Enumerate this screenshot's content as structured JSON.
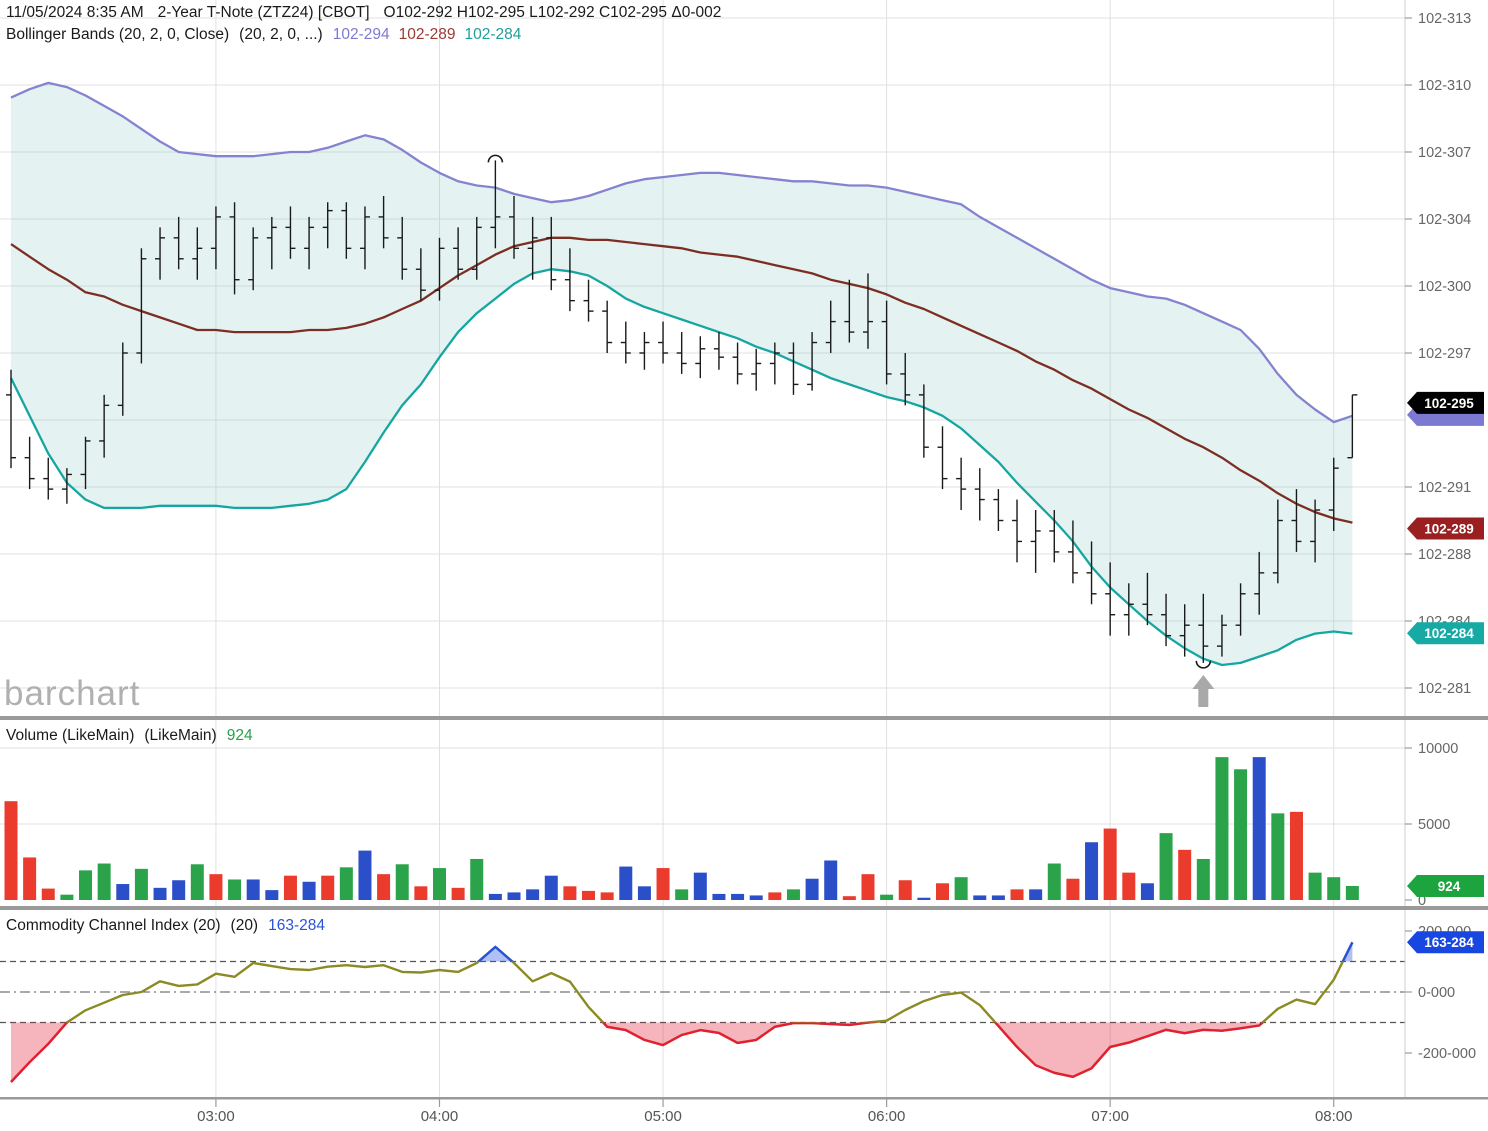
{
  "header": {
    "datetime": "11/05/2024 8:35 AM",
    "symbol": "2-Year T-Note (ZTZ24) [CBOT]",
    "ohlc": "O102-292 H102-295 L102-292 C102-295 Δ0-002",
    "bollinger_label": "Bollinger Bands (20, 2, 0, Close)",
    "bollinger_params": "(20, 2, 0, ...)",
    "bollinger_upper": "102-294",
    "bollinger_middle": "102-289",
    "bollinger_lower": "102-284"
  },
  "volume_header": {
    "label": "Volume (LikeMain)",
    "params": "(LikeMain)",
    "value": "924"
  },
  "cci_header": {
    "label": "Commodity Channel Index (20)",
    "params": "(20)",
    "value": "163-284"
  },
  "watermark": "barchart",
  "colors": {
    "band_upper": "#8583cf",
    "band_middle": "#7d2e23",
    "band_lower": "#16a6a1",
    "band_fill": "rgba(130,200,196,0.22)",
    "ohlc_bar": "#1a1a1a",
    "vol_up": "#2aa34a",
    "vol_down": "#ea3b2d",
    "vol_neutral": "#2b4fc9",
    "cci_line": "#8b8b25",
    "cci_below": "#e51f33",
    "cci_above": "#2553d9",
    "cci_fill_below": "rgba(229,31,51,0.33)",
    "cci_fill_above": "rgba(59,98,227,0.4)",
    "badge_last": "#000000",
    "badge_last_accent": "#7b79d2",
    "badge_middle": "#991f20",
    "badge_lower": "#17a9a4",
    "badge_volume": "#1ca53e",
    "badge_cci": "#1746e0",
    "arrow": "#a9a9a9"
  },
  "chart_data": {
    "type": "ohlc-multi-panel",
    "interval_minutes": 5,
    "price_unit": "32nds over 102, tenths notation (29.5 = 102-295)",
    "x_ticks": [
      {
        "label": "03:00",
        "bar_index": 11
      },
      {
        "label": "04:00",
        "bar_index": 23
      },
      {
        "label": "05:00",
        "bar_index": 35
      },
      {
        "label": "06:00",
        "bar_index": 47
      },
      {
        "label": "07:00",
        "bar_index": 59
      },
      {
        "label": "08:00",
        "bar_index": 71
      }
    ],
    "panels": [
      {
        "name": "price",
        "type": "ohlc+bollinger",
        "y_ticks": [
          {
            "label": "102-313",
            "v": 31.3
          },
          {
            "label": "102-310",
            "v": 30.98
          },
          {
            "label": "102-307",
            "v": 30.66
          },
          {
            "label": "102-304",
            "v": 30.34
          },
          {
            "label": "102-300",
            "v": 30.02
          },
          {
            "label": "102-297",
            "v": 29.7
          },
          {
            "label": "102-291",
            "v": 29.06
          },
          {
            "label": "102-288",
            "v": 28.74
          },
          {
            "label": "102-284",
            "v": 28.42
          },
          {
            "label": "102-281",
            "v": 28.1
          }
        ],
        "extra_gridlines": [
          29.38
        ],
        "badges": [
          {
            "label": "102-295",
            "v": 29.5,
            "bg": "#000000",
            "accent": "#7b79d2"
          },
          {
            "label": "102-289",
            "v": 28.9,
            "bg": "#991f20"
          },
          {
            "label": "102-284",
            "v": 28.4,
            "bg": "#17a9a4"
          }
        ],
        "markers": [
          {
            "type": "arc-over",
            "bar": 26
          },
          {
            "type": "arc-under",
            "bar": 64
          },
          {
            "type": "arrow-up",
            "bar": 64
          }
        ],
        "bars": [
          [
            29.5,
            29.62,
            29.15,
            29.2
          ],
          [
            29.2,
            29.3,
            29.05,
            29.1
          ],
          [
            29.1,
            29.2,
            29.0,
            29.05
          ],
          [
            29.05,
            29.15,
            28.98,
            29.12
          ],
          [
            29.12,
            29.3,
            29.05,
            29.28
          ],
          [
            29.28,
            29.5,
            29.2,
            29.45
          ],
          [
            29.45,
            29.75,
            29.4,
            29.7
          ],
          [
            29.7,
            30.2,
            29.65,
            30.15
          ],
          [
            30.15,
            30.3,
            30.05,
            30.25
          ],
          [
            30.25,
            30.35,
            30.1,
            30.15
          ],
          [
            30.15,
            30.3,
            30.05,
            30.2
          ],
          [
            30.2,
            30.4,
            30.1,
            30.35
          ],
          [
            30.35,
            30.42,
            29.98,
            30.05
          ],
          [
            30.05,
            30.3,
            30.0,
            30.25
          ],
          [
            30.25,
            30.35,
            30.1,
            30.3
          ],
          [
            30.3,
            30.4,
            30.15,
            30.2
          ],
          [
            30.2,
            30.35,
            30.1,
            30.3
          ],
          [
            30.3,
            30.42,
            30.2,
            30.38
          ],
          [
            30.38,
            30.42,
            30.15,
            30.2
          ],
          [
            30.2,
            30.4,
            30.1,
            30.35
          ],
          [
            30.35,
            30.45,
            30.2,
            30.25
          ],
          [
            30.25,
            30.35,
            30.05,
            30.1
          ],
          [
            30.1,
            30.2,
            29.95,
            30.0
          ],
          [
            30.0,
            30.25,
            29.95,
            30.2
          ],
          [
            30.2,
            30.3,
            30.05,
            30.1
          ],
          [
            30.1,
            30.35,
            30.05,
            30.3
          ],
          [
            30.3,
            30.62,
            30.2,
            30.35
          ],
          [
            30.35,
            30.45,
            30.15,
            30.2
          ],
          [
            30.2,
            30.35,
            30.05,
            30.25
          ],
          [
            30.25,
            30.35,
            30.0,
            30.05
          ],
          [
            30.05,
            30.2,
            29.9,
            29.95
          ],
          [
            29.95,
            30.05,
            29.85,
            29.9
          ],
          [
            29.9,
            29.95,
            29.7,
            29.75
          ],
          [
            29.75,
            29.85,
            29.65,
            29.7
          ],
          [
            29.7,
            29.8,
            29.62,
            29.75
          ],
          [
            29.75,
            29.85,
            29.65,
            29.7
          ],
          [
            29.7,
            29.8,
            29.6,
            29.65
          ],
          [
            29.65,
            29.78,
            29.58,
            29.72
          ],
          [
            29.72,
            29.8,
            29.62,
            29.68
          ],
          [
            29.68,
            29.75,
            29.55,
            29.6
          ],
          [
            29.6,
            29.72,
            29.52,
            29.65
          ],
          [
            29.65,
            29.75,
            29.55,
            29.7
          ],
          [
            29.7,
            29.75,
            29.5,
            29.55
          ],
          [
            29.55,
            29.8,
            29.52,
            29.75
          ],
          [
            29.75,
            29.95,
            29.7,
            29.85
          ],
          [
            29.85,
            30.05,
            29.75,
            29.8
          ],
          [
            29.8,
            30.08,
            29.72,
            29.85
          ],
          [
            29.85,
            29.95,
            29.55,
            29.6
          ],
          [
            29.6,
            29.7,
            29.45,
            29.5
          ],
          [
            29.5,
            29.55,
            29.2,
            29.25
          ],
          [
            29.25,
            29.35,
            29.05,
            29.1
          ],
          [
            29.1,
            29.2,
            28.95,
            29.05
          ],
          [
            29.05,
            29.15,
            28.9,
            29.0
          ],
          [
            29.0,
            29.05,
            28.85,
            28.9
          ],
          [
            28.9,
            29.0,
            28.7,
            28.8
          ],
          [
            28.8,
            28.95,
            28.65,
            28.85
          ],
          [
            28.85,
            28.95,
            28.7,
            28.75
          ],
          [
            28.75,
            28.9,
            28.6,
            28.65
          ],
          [
            28.65,
            28.8,
            28.5,
            28.55
          ],
          [
            28.55,
            28.7,
            28.35,
            28.45
          ],
          [
            28.45,
            28.6,
            28.35,
            28.5
          ],
          [
            28.5,
            28.65,
            28.4,
            28.45
          ],
          [
            28.45,
            28.55,
            28.3,
            28.35
          ],
          [
            28.35,
            28.5,
            28.25,
            28.4
          ],
          [
            28.4,
            28.55,
            28.22,
            28.3
          ],
          [
            28.3,
            28.45,
            28.25,
            28.4
          ],
          [
            28.4,
            28.6,
            28.35,
            28.55
          ],
          [
            28.55,
            28.75,
            28.45,
            28.65
          ],
          [
            28.65,
            29.0,
            28.6,
            28.9
          ],
          [
            28.9,
            29.05,
            28.75,
            28.8
          ],
          [
            28.8,
            29.0,
            28.7,
            28.95
          ],
          [
            28.95,
            29.2,
            28.85,
            29.15
          ],
          [
            29.2,
            29.5,
            29.2,
            29.5
          ]
        ],
        "bollinger_upper": [
          30.92,
          30.96,
          30.99,
          30.97,
          30.93,
          30.88,
          30.83,
          30.77,
          30.71,
          30.66,
          30.65,
          30.64,
          30.64,
          30.64,
          30.65,
          30.66,
          30.66,
          30.68,
          30.71,
          30.74,
          30.72,
          30.67,
          30.61,
          30.56,
          30.52,
          30.5,
          30.49,
          30.46,
          30.44,
          30.42,
          30.43,
          30.45,
          30.48,
          30.51,
          30.53,
          30.54,
          30.55,
          30.56,
          30.56,
          30.55,
          30.54,
          30.53,
          30.52,
          30.52,
          30.51,
          30.5,
          30.5,
          30.49,
          30.47,
          30.45,
          30.43,
          30.41,
          30.35,
          30.3,
          30.25,
          30.2,
          30.15,
          30.1,
          30.05,
          30.01,
          29.99,
          29.97,
          29.96,
          29.93,
          29.89,
          29.85,
          29.81,
          29.72,
          29.6,
          29.5,
          29.43,
          29.37,
          29.4
        ],
        "bollinger_middle": [
          30.22,
          30.16,
          30.1,
          30.05,
          29.99,
          29.97,
          29.93,
          29.9,
          29.87,
          29.84,
          29.81,
          29.81,
          29.8,
          29.8,
          29.8,
          29.8,
          29.81,
          29.81,
          29.82,
          29.84,
          29.87,
          29.91,
          29.95,
          30.01,
          30.07,
          30.12,
          30.17,
          30.21,
          30.23,
          30.25,
          30.25,
          30.24,
          30.24,
          30.23,
          30.22,
          30.21,
          30.2,
          30.18,
          30.17,
          30.16,
          30.14,
          30.12,
          30.1,
          30.08,
          30.05,
          30.03,
          30.01,
          29.98,
          29.94,
          29.91,
          29.87,
          29.83,
          29.79,
          29.75,
          29.71,
          29.66,
          29.62,
          29.57,
          29.53,
          29.48,
          29.43,
          29.39,
          29.34,
          29.29,
          29.25,
          29.2,
          29.14,
          29.09,
          29.03,
          28.98,
          28.94,
          28.91,
          28.89
        ],
        "bollinger_lower": [
          29.58,
          29.4,
          29.22,
          29.08,
          29.0,
          28.96,
          28.96,
          28.96,
          28.97,
          28.97,
          28.97,
          28.97,
          28.96,
          28.96,
          28.96,
          28.97,
          28.98,
          29.0,
          29.05,
          29.18,
          29.32,
          29.45,
          29.55,
          29.68,
          29.8,
          29.89,
          29.96,
          30.03,
          30.08,
          30.1,
          30.09,
          30.07,
          30.02,
          29.96,
          29.92,
          29.89,
          29.86,
          29.83,
          29.8,
          29.77,
          29.73,
          29.7,
          29.66,
          29.62,
          29.58,
          29.55,
          29.52,
          29.49,
          29.47,
          29.44,
          29.4,
          29.34,
          29.26,
          29.18,
          29.08,
          28.99,
          28.9,
          28.8,
          28.68,
          28.58,
          28.5,
          28.42,
          28.35,
          28.29,
          28.24,
          28.21,
          28.22,
          28.25,
          28.28,
          28.33,
          28.36,
          28.37,
          28.36
        ]
      },
      {
        "name": "volume",
        "type": "bar",
        "y_ticks": [
          {
            "label": "10000",
            "v": 10000
          },
          {
            "label": "5000",
            "v": 5000
          },
          {
            "label": "0",
            "v": 0
          }
        ],
        "badge": {
          "label": "924",
          "v": 924,
          "bg": "#1ca53e"
        },
        "values": [
          6500,
          2800,
          750,
          350,
          1950,
          2400,
          1050,
          2050,
          800,
          1300,
          2350,
          1700,
          1350,
          1350,
          650,
          1600,
          1200,
          1600,
          2150,
          3250,
          1700,
          2350,
          900,
          2100,
          800,
          2700,
          400,
          500,
          700,
          1600,
          900,
          600,
          500,
          2200,
          900,
          2100,
          700,
          1800,
          400,
          400,
          300,
          500,
          700,
          1400,
          2600,
          250,
          1700,
          350,
          1300,
          150,
          1100,
          1500,
          300,
          300,
          700,
          700,
          2400,
          1400,
          3800,
          4700,
          1800,
          1100,
          4400,
          3300,
          2700,
          9400,
          8600,
          9400,
          5700,
          5800,
          1800,
          1500,
          924
        ],
        "colors": [
          "r",
          "r",
          "r",
          "g",
          "g",
          "g",
          "b",
          "g",
          "b",
          "b",
          "g",
          "r",
          "g",
          "b",
          "b",
          "r",
          "b",
          "r",
          "g",
          "b",
          "r",
          "g",
          "r",
          "g",
          "r",
          "g",
          "b",
          "b",
          "b",
          "b",
          "r",
          "r",
          "r",
          "b",
          "b",
          "r",
          "g",
          "b",
          "b",
          "b",
          "b",
          "r",
          "g",
          "b",
          "b",
          "r",
          "r",
          "g",
          "r",
          "b",
          "r",
          "g",
          "b",
          "b",
          "r",
          "b",
          "g",
          "r",
          "b",
          "r",
          "r",
          "b",
          "g",
          "r",
          "g",
          "g",
          "g",
          "b",
          "g",
          "r",
          "g",
          "g",
          "g"
        ]
      },
      {
        "name": "cci",
        "type": "line",
        "thresholds": {
          "upper": 100,
          "lower": -100,
          "zero": 0
        },
        "y_ticks": [
          {
            "label": "200-000",
            "v": 200
          },
          {
            "label": "0-000",
            "v": 0
          },
          {
            "label": "-200-000",
            "v": -200
          }
        ],
        "badge": {
          "label": "163-284",
          "v": 163.284,
          "bg": "#1746e0"
        },
        "values": [
          -295,
          -230,
          -170,
          -100,
          -60,
          -35,
          -10,
          0,
          35,
          20,
          25,
          60,
          50,
          95,
          85,
          75,
          72,
          83,
          88,
          82,
          88,
          66,
          64,
          72,
          66,
          95,
          148,
          95,
          35,
          62,
          34,
          -49,
          -114,
          -125,
          -157,
          -174,
          -141,
          -125,
          -134,
          -167,
          -157,
          -114,
          -102,
          -102,
          -105,
          -108,
          -100,
          -94,
          -59,
          -30,
          -10,
          -2,
          -43,
          -111,
          -180,
          -240,
          -265,
          -278,
          -250,
          -180,
          -166,
          -145,
          -124,
          -135,
          -124,
          -127,
          -119,
          -110,
          -55,
          -25,
          -40,
          40,
          163
        ]
      }
    ]
  }
}
